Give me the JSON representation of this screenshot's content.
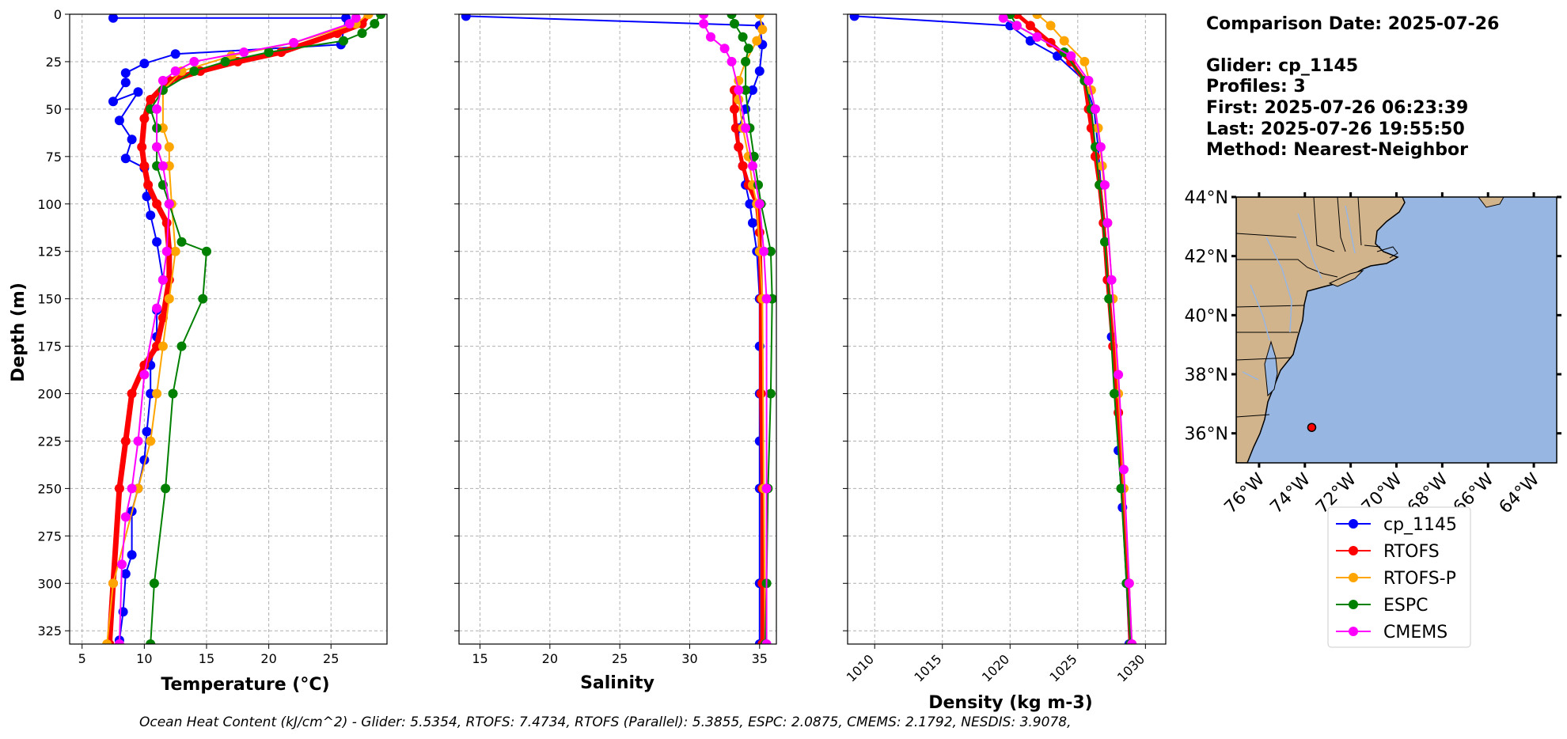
{
  "chart_data": [
    {
      "type": "line",
      "xlabel": "Temperature (°C)",
      "ylabel": "Depth (m)",
      "xlim": [
        4,
        29.5
      ],
      "ylim": [
        332,
        0
      ],
      "xticks": [
        5,
        10,
        15,
        20,
        25
      ],
      "yticks": [
        0,
        25,
        50,
        75,
        100,
        125,
        150,
        175,
        200,
        225,
        250,
        275,
        300,
        325
      ],
      "grid": true,
      "series": [
        {
          "name": "cp_1145",
          "color": "#0000ff",
          "x": [
            7.5,
            26.2,
            25.8,
            12.5,
            10.0,
            8.5,
            8.5,
            7.5,
            9.5,
            8.0,
            9.0,
            8.5,
            10.0,
            10.2,
            10.5,
            11.0,
            11.5,
            11.0,
            11.0,
            10.5,
            10.5,
            10.2,
            10.0,
            9.5,
            9.0,
            9.0,
            8.5,
            8.3,
            8.0
          ],
          "y": [
            2,
            2,
            16,
            21,
            26,
            31,
            36,
            46,
            41,
            56,
            66,
            76,
            81,
            96,
            106,
            120,
            140,
            156,
            170,
            185,
            200,
            220,
            235,
            250,
            262,
            285,
            295,
            315,
            330
          ]
        },
        {
          "name": "RTOFS",
          "color": "#ff0000",
          "x": [
            28.0,
            27.5,
            25.5,
            21.0,
            17.5,
            14.5,
            12.0,
            10.5,
            10.0,
            9.8,
            10.0,
            10.3,
            11.0,
            11.8,
            12.0,
            12.0,
            11.5,
            11.0,
            10.0,
            9.0,
            8.5,
            8.0,
            7.5,
            7.2
          ],
          "y": [
            0,
            5,
            10,
            20,
            25,
            30,
            35,
            45,
            55,
            70,
            80,
            90,
            100,
            110,
            125,
            140,
            160,
            175,
            185,
            200,
            225,
            250,
            300,
            332
          ]
        },
        {
          "name": "RTOFS-P",
          "color": "#ffa500",
          "x": [
            28.0,
            27.0,
            22.0,
            17.0,
            13.0,
            11.5,
            11.5,
            12.0,
            12.0,
            12.2,
            12.5,
            12.0,
            11.5,
            11.0,
            10.5,
            9.5,
            7.5,
            7.0
          ],
          "y": [
            0,
            5,
            15,
            22,
            30,
            40,
            60,
            70,
            80,
            100,
            125,
            150,
            175,
            200,
            225,
            250,
            300,
            332
          ]
        },
        {
          "name": "ESPC",
          "color": "#008000",
          "x": [
            29.0,
            28.5,
            27.5,
            26.0,
            20.0,
            16.5,
            14.0,
            11.5,
            10.5,
            11.0,
            11.0,
            11.0,
            11.5,
            12.0,
            13.0,
            15.0,
            14.7,
            13.0,
            12.3,
            11.7,
            10.8,
            10.5
          ],
          "y": [
            0,
            5,
            10,
            14,
            20,
            25,
            30,
            40,
            50,
            60,
            70,
            80,
            90,
            100,
            120,
            125,
            150,
            175,
            200,
            250,
            300,
            332
          ]
        },
        {
          "name": "CMEMS",
          "color": "#ff00ff",
          "x": [
            27.0,
            26.5,
            22.0,
            18.0,
            14.0,
            12.5,
            11.5,
            11.0,
            11.0,
            11.5,
            12.0,
            11.8,
            11.5,
            11.0,
            10.0,
            9.5,
            9.0,
            8.5,
            8.2,
            8.0
          ],
          "y": [
            2,
            5,
            15,
            20,
            25,
            30,
            35,
            50,
            70,
            80,
            100,
            125,
            140,
            155,
            190,
            225,
            250,
            265,
            290,
            332
          ]
        }
      ]
    },
    {
      "type": "line",
      "xlabel": "Salinity",
      "xlim": [
        13.5,
        36.2
      ],
      "ylim": [
        332,
        0
      ],
      "xticks": [
        15,
        20,
        25,
        30,
        35
      ],
      "grid": true,
      "series": [
        {
          "name": "cp_1145",
          "color": "#0000ff",
          "x": [
            14.0,
            35.0,
            35.2,
            35.0,
            34.5,
            34.0,
            33.5,
            33.5,
            33.8,
            34.0,
            34.3,
            34.5,
            34.8,
            35.0,
            35.0,
            35.0,
            35.0,
            35.0,
            35.0,
            35.0
          ],
          "y": [
            1,
            6,
            16,
            30,
            40,
            50,
            60,
            70,
            80,
            90,
            100,
            110,
            125,
            150,
            175,
            200,
            225,
            250,
            300,
            332
          ]
        },
        {
          "name": "RTOFS",
          "color": "#ff0000",
          "x": [
            33.2,
            33.2,
            33.3,
            33.5,
            33.8,
            34.2,
            34.8,
            35.0,
            35.1,
            35.1,
            35.2,
            35.2,
            35.2
          ],
          "y": [
            40,
            50,
            60,
            70,
            80,
            90,
            100,
            115,
            150,
            200,
            250,
            300,
            332
          ]
        },
        {
          "name": "RTOFS-P",
          "color": "#ffa500",
          "x": [
            35.0,
            35.2,
            34.8,
            34.0,
            33.5,
            33.5,
            33.8,
            34.2,
            34.5,
            34.8,
            35.0,
            35.2,
            35.3,
            35.4
          ],
          "y": [
            0,
            8,
            14,
            25,
            35,
            45,
            60,
            75,
            90,
            100,
            125,
            150,
            250,
            332
          ]
        },
        {
          "name": "ESPC",
          "color": "#008000",
          "x": [
            33.0,
            33.2,
            33.8,
            34.2,
            34.0,
            34.0,
            34.3,
            34.6,
            34.9,
            35.1,
            35.8,
            35.9,
            35.8,
            35.6,
            35.5,
            35.4
          ],
          "y": [
            0,
            5,
            12,
            18,
            25,
            40,
            60,
            75,
            90,
            100,
            125,
            150,
            200,
            250,
            300,
            332
          ]
        },
        {
          "name": "CMEMS",
          "color": "#ff00ff",
          "x": [
            31.0,
            31.0,
            31.5,
            32.5,
            33.0,
            33.5,
            34.0,
            34.5,
            35.0,
            35.3,
            35.5,
            35.5,
            35.5
          ],
          "y": [
            0,
            5,
            12,
            18,
            25,
            40,
            60,
            80,
            100,
            125,
            150,
            250,
            332
          ]
        }
      ]
    },
    {
      "type": "line",
      "xlabel": "Density (kg m-3)",
      "xlim": [
        1008,
        1031.5
      ],
      "ylim": [
        332,
        0
      ],
      "xticks": [
        1010,
        1015,
        1020,
        1025,
        1030
      ],
      "grid": true,
      "series": [
        {
          "name": "cp_1145",
          "color": "#0000ff",
          "x": [
            1008.5,
            1020.0,
            1021.5,
            1023.5,
            1025.5,
            1026.2,
            1026.5,
            1026.7,
            1027.0,
            1027.2,
            1027.5,
            1027.8,
            1028.0,
            1028.3,
            1028.6,
            1028.8
          ],
          "y": [
            1,
            6,
            14,
            22,
            35,
            50,
            70,
            90,
            110,
            140,
            170,
            200,
            230,
            260,
            300,
            332
          ]
        },
        {
          "name": "RTOFS",
          "color": "#ff0000",
          "x": [
            1020.5,
            1021.5,
            1023.0,
            1024.5,
            1025.5,
            1025.8,
            1026.0,
            1026.3,
            1026.6,
            1026.9,
            1027.2,
            1027.6,
            1028.0,
            1028.3,
            1028.7,
            1028.9
          ],
          "y": [
            0,
            6,
            15,
            25,
            35,
            50,
            60,
            75,
            90,
            110,
            140,
            175,
            210,
            250,
            300,
            332
          ]
        },
        {
          "name": "RTOFS-P",
          "color": "#ffa500",
          "x": [
            1022.0,
            1023.0,
            1024.0,
            1025.5,
            1026.0,
            1026.5,
            1026.8,
            1027.2,
            1027.6,
            1028.0,
            1028.4,
            1028.8,
            1029.0
          ],
          "y": [
            0,
            6,
            14,
            25,
            40,
            60,
            80,
            110,
            150,
            200,
            250,
            300,
            332
          ]
        },
        {
          "name": "ESPC",
          "color": "#008000",
          "x": [
            1020.0,
            1020.5,
            1022.0,
            1024.0,
            1025.5,
            1026.0,
            1026.3,
            1026.6,
            1027.0,
            1027.3,
            1027.7,
            1028.2,
            1028.6,
            1028.9
          ],
          "y": [
            0,
            6,
            12,
            20,
            35,
            50,
            70,
            90,
            120,
            150,
            200,
            250,
            300,
            332
          ]
        },
        {
          "name": "CMEMS",
          "color": "#ff00ff",
          "x": [
            1019.5,
            1020.5,
            1022.0,
            1024.5,
            1025.8,
            1026.3,
            1026.7,
            1027.0,
            1027.2,
            1027.5,
            1028.0,
            1028.4,
            1028.8,
            1029.0
          ],
          "y": [
            2,
            6,
            12,
            22,
            35,
            50,
            70,
            90,
            110,
            140,
            190,
            240,
            300,
            332
          ]
        }
      ]
    }
  ],
  "info": {
    "comparison_date": "Comparison Date: 2025-07-26",
    "glider": "Glider: cp_1145",
    "profiles": "Profiles: 3",
    "first": "First: 2025-07-26 06:23:39",
    "last": "Last: 2025-07-26 19:55:50",
    "method": "Method: Nearest-Neighbor"
  },
  "map": {
    "lat_labels": [
      "44°N",
      "42°N",
      "40°N",
      "38°N",
      "36°N"
    ],
    "lat_values": [
      44,
      42,
      40,
      38,
      36
    ],
    "lon_labels": [
      "76°W",
      "74°W",
      "72°W",
      "70°W",
      "68°W",
      "66°W",
      "64°W"
    ],
    "lon_values": [
      -76,
      -74,
      -72,
      -70,
      -68,
      -66,
      -64
    ],
    "lon_range": [
      -77.0,
      -63.0
    ],
    "lat_range": [
      35.0,
      44.0
    ],
    "land_color": "#d2b48c",
    "ocean_color": "#97b6e1",
    "glider_position": {
      "lon": -73.7,
      "lat": 36.2
    }
  },
  "legend": [
    {
      "label": "cp_1145",
      "color": "#0000ff"
    },
    {
      "label": "RTOFS",
      "color": "#ff0000"
    },
    {
      "label": "RTOFS-P",
      "color": "#ffa500"
    },
    {
      "label": "ESPC",
      "color": "#008000"
    },
    {
      "label": "CMEMS",
      "color": "#ff00ff"
    }
  ],
  "footer": "Ocean Heat Content (kJ/cm^2) - Glider: 5.5354,  RTOFS: 7.4734,  RTOFS (Parallel): 5.3855,  ESPC: 2.0875,  CMEMS: 2.1792,  NESDIS: 3.9078,"
}
